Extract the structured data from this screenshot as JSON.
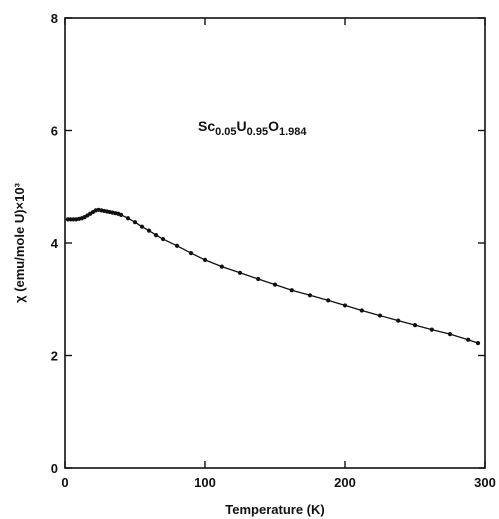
{
  "chart_data": {
    "type": "line",
    "title": "",
    "xlabel": "Temperature (K)",
    "ylabel": "χ (emu/mole U)×10³",
    "xlim": [
      0,
      300
    ],
    "ylim": [
      0,
      8
    ],
    "x_ticks": [
      0,
      100,
      200,
      300
    ],
    "y_ticks": [
      0,
      2,
      4,
      6,
      8
    ],
    "grid": false,
    "annotation": {
      "parts": [
        {
          "text": "Sc",
          "sub": "0.05"
        },
        {
          "text": "U",
          "sub": "0.95"
        },
        {
          "text": "O",
          "sub": "1.984"
        }
      ]
    },
    "series": [
      {
        "x": [
          2,
          4,
          6,
          8,
          10,
          12,
          14,
          16,
          18,
          20,
          22,
          24,
          26,
          28,
          30,
          32,
          34,
          36,
          38,
          40,
          45,
          50,
          55,
          60,
          65,
          70,
          80,
          90,
          100,
          112,
          125,
          138,
          150,
          162,
          175,
          188,
          200,
          212,
          225,
          238,
          250,
          262,
          275,
          288,
          295
        ],
        "y": [
          4.42,
          4.42,
          4.42,
          4.42,
          4.43,
          4.44,
          4.46,
          4.49,
          4.52,
          4.55,
          4.58,
          4.59,
          4.58,
          4.57,
          4.56,
          4.55,
          4.54,
          4.53,
          4.52,
          4.5,
          4.44,
          4.37,
          4.29,
          4.22,
          4.14,
          4.07,
          3.95,
          3.82,
          3.7,
          3.58,
          3.47,
          3.36,
          3.26,
          3.16,
          3.07,
          2.98,
          2.89,
          2.8,
          2.71,
          2.62,
          2.54,
          2.46,
          2.38,
          2.28,
          2.22
        ]
      }
    ]
  }
}
